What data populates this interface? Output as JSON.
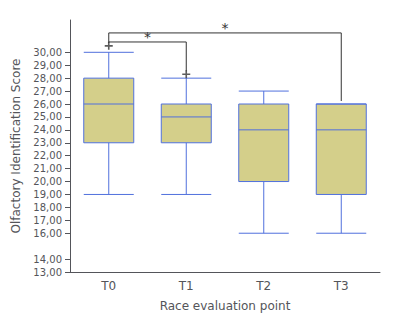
{
  "chart_data": {
    "type": "box",
    "xlabel": "Race evaluation point",
    "ylabel": "Olfactory Identification Score",
    "categories": [
      "T0",
      "T1",
      "T2",
      "T3"
    ],
    "boxes": [
      {
        "whislo": 19.0,
        "q1": 23.0,
        "med": 26.0,
        "q3": 28.0,
        "whishi": 30.0
      },
      {
        "whislo": 19.0,
        "q1": 23.0,
        "med": 25.0,
        "q3": 26.0,
        "whishi": 28.0
      },
      {
        "whislo": 16.0,
        "q1": 20.0,
        "med": 24.0,
        "q3": 26.0,
        "whishi": 27.0
      },
      {
        "whislo": 16.0,
        "q1": 19.0,
        "med": 24.0,
        "q3": 26.0,
        "whishi": 26.0
      }
    ],
    "outliers": [
      {
        "category": "T0",
        "value": 30.5
      },
      {
        "category": "T1",
        "value": 28.3
      }
    ],
    "color": "#d4cf8a",
    "ylim": [
      13.0,
      32.5
    ],
    "yticks": [
      {
        "value": 13,
        "label": "13,00"
      },
      {
        "value": 14,
        "label": "14,00"
      },
      {
        "value": 16,
        "label": "16,00"
      },
      {
        "value": 17,
        "label": "17,00"
      },
      {
        "value": 18,
        "label": "18,00"
      },
      {
        "value": 19,
        "label": "19,00"
      },
      {
        "value": 20,
        "label": "20,00"
      },
      {
        "value": 21,
        "label": "21,00"
      },
      {
        "value": 22,
        "label": "22,00"
      },
      {
        "value": 23,
        "label": "23,00"
      },
      {
        "value": 24,
        "label": "24,00"
      },
      {
        "value": 25,
        "label": "25,00"
      },
      {
        "value": 26,
        "label": "26,00"
      },
      {
        "value": 27,
        "label": "27,00"
      },
      {
        "value": 28,
        "label": "28,00"
      },
      {
        "value": 29,
        "label": "29,00"
      },
      {
        "value": 30,
        "label": "30,00"
      }
    ],
    "grid": false,
    "brackets": [
      {
        "from": "T0",
        "to": "T1",
        "y": 30.8,
        "label": "*"
      },
      {
        "from": "T0",
        "to": "T3",
        "y": 31.5,
        "label": "*"
      }
    ]
  }
}
